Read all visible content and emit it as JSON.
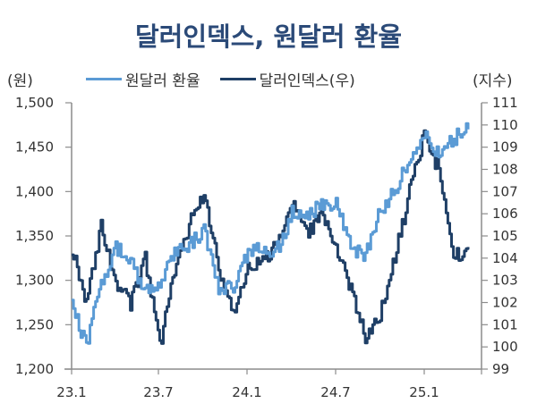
{
  "header": {
    "title": "달러인덱스, 원달러 환율",
    "left_unit": "(원)",
    "right_unit": "(지수)"
  },
  "legend": {
    "items": [
      {
        "label": "원달러 환율",
        "color": "#5b9bd5"
      },
      {
        "label": "달러인덱스(우)",
        "color": "#1f3f66"
      }
    ]
  },
  "chart_data": {
    "type": "line",
    "title": "달러인덱스, 원달러 환율",
    "xlabel": "",
    "ylabel": "(원)",
    "y2label": "(지수)",
    "x_ticks": [
      "23.1",
      "23.7",
      "24.1",
      "24.7",
      "25.1"
    ],
    "y_ticks": [
      "1,200",
      "1,250",
      "1,300",
      "1,350",
      "1,400",
      "1,450",
      "1,500"
    ],
    "y2_ticks": [
      "99",
      "100",
      "101",
      "102",
      "103",
      "104",
      "105",
      "106",
      "107",
      "108",
      "109",
      "110",
      "111"
    ],
    "ylim": [
      1200,
      1500
    ],
    "y2lim": [
      99,
      111
    ],
    "grid": false,
    "legend_position": "top",
    "x": [
      "23.1",
      "23.2",
      "23.3",
      "23.4",
      "23.5",
      "23.6",
      "23.7",
      "23.8",
      "23.9",
      "23.10",
      "23.11",
      "23.12",
      "24.1",
      "24.2",
      "24.3",
      "24.4",
      "24.5",
      "24.6",
      "24.7",
      "24.8",
      "24.9",
      "24.10",
      "24.11",
      "24.12",
      "25.1",
      "25.2",
      "25.3",
      "25.4"
    ],
    "series": [
      {
        "name": "원달러 환율",
        "axis": "left",
        "color": "#5b9bd5",
        "values": [
          1270,
          1225,
          1300,
          1335,
          1325,
          1285,
          1295,
          1330,
          1340,
          1355,
          1290,
          1295,
          1330,
          1335,
          1335,
          1375,
          1370,
          1385,
          1385,
          1335,
          1330,
          1380,
          1400,
          1440,
          1465,
          1440,
          1460,
          1470
        ]
      },
      {
        "name": "달러인덱스(우)",
        "axis": "right",
        "color": "#1f3f66",
        "values": [
          104.5,
          102.0,
          105.5,
          102.8,
          102.0,
          104.0,
          100.0,
          103.5,
          105.5,
          107.0,
          103.5,
          101.5,
          103.5,
          104.0,
          104.5,
          106.5,
          105.0,
          106.0,
          104.5,
          102.5,
          100.5,
          101.5,
          104.0,
          107.0,
          109.5,
          108.0,
          104.0,
          104.5
        ]
      }
    ]
  }
}
